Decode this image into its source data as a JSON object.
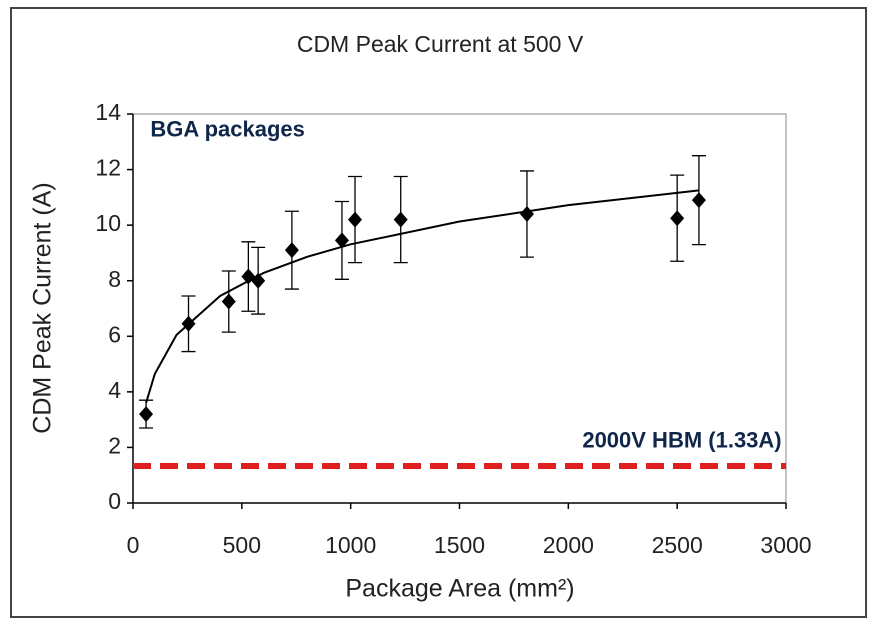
{
  "chart_data": {
    "type": "scatter",
    "title": "CDM Peak Current at 500 V",
    "xlabel": "Package Area (mm²)",
    "ylabel": "CDM Peak Current (A)",
    "xlim": [
      0,
      3000
    ],
    "xticks": [
      0,
      500,
      1000,
      1500,
      2000,
      2500,
      3000
    ],
    "ylim": [
      0,
      14
    ],
    "yticks": [
      0,
      2,
      4,
      6,
      8,
      10,
      12,
      14
    ],
    "series": [
      {
        "type": "scatter",
        "color": "#000000",
        "x": [
          60,
          255,
          440,
          530,
          575,
          730,
          960,
          1020,
          1230,
          1810,
          2500,
          2600
        ],
        "values": [
          3.2,
          6.45,
          7.25,
          8.15,
          8.0,
          9.1,
          9.45,
          10.2,
          10.2,
          10.4,
          10.25,
          10.9
        ],
        "errors": [
          0.5,
          1.0,
          1.1,
          1.25,
          1.2,
          1.4,
          1.4,
          1.55,
          1.55,
          1.55,
          1.55,
          1.6
        ]
      },
      {
        "type": "line",
        "color": "#000000",
        "x": [
          60,
          100,
          200,
          400,
          600,
          800,
          1000,
          1500,
          2000,
          2600
        ],
        "values": [
          3.6,
          4.64,
          6.05,
          7.45,
          8.28,
          8.86,
          9.31,
          10.13,
          10.72,
          11.25
        ]
      },
      {
        "type": "line",
        "color": "#e02020",
        "dashed": true,
        "x": [
          0,
          3000
        ],
        "values": [
          1.33,
          1.33
        ]
      }
    ],
    "annotations": [
      {
        "text": "BGA packages",
        "x": 80,
        "y": 13.4
      },
      {
        "text": "2000V HBM (1.33A)",
        "x": 2980,
        "y": 2.2
      }
    ]
  }
}
